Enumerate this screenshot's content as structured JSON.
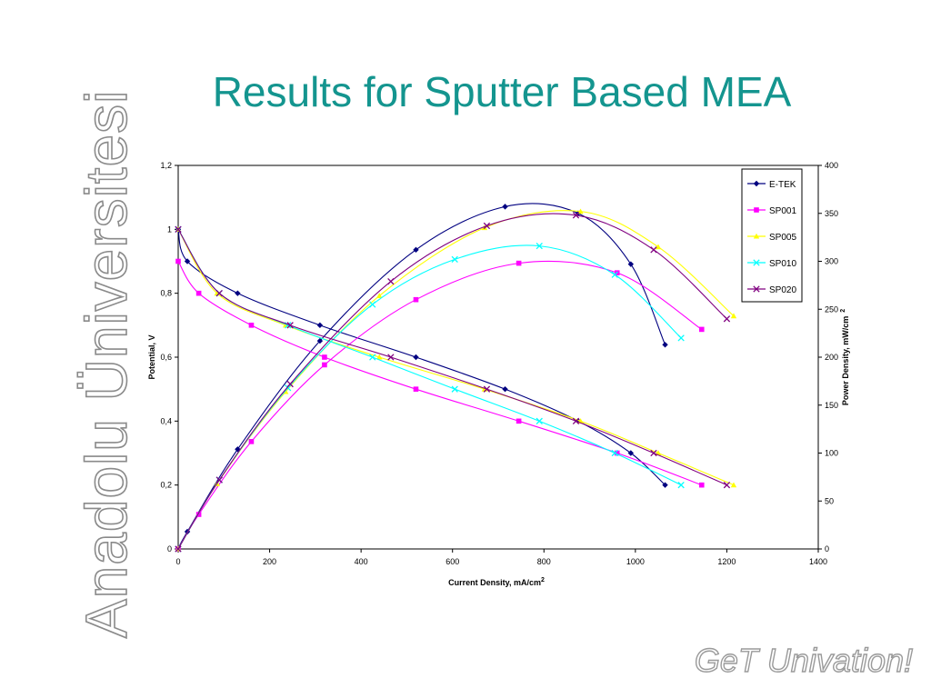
{
  "slide": {
    "title": "Results for Sputter Based MEA",
    "watermark": "Anadolu Üniversitesi",
    "tagline": "GeT Univation!"
  },
  "chart_data": {
    "type": "line",
    "xlabel": "Current Density, mA/cm",
    "xlabel_sup": "2",
    "ylabel_left": "Potential, V",
    "ylabel_right": "Power Density, mW/cm",
    "ylabel_right_sup": "2",
    "xlim": [
      0,
      1400
    ],
    "ylim_left": [
      0,
      1.2
    ],
    "ylim_right": [
      0,
      400
    ],
    "x_ticks": [
      "0",
      "200",
      "400",
      "600",
      "800",
      "1000",
      "1200",
      "1400"
    ],
    "y_left_ticks": [
      "0",
      "0,2",
      "0,4",
      "0,6",
      "0,8",
      "1",
      "1,2"
    ],
    "y_right_ticks": [
      "0",
      "50",
      "100",
      "150",
      "200",
      "250",
      "300",
      "350",
      "400"
    ],
    "grid": false,
    "legend_position": "top-right",
    "series": [
      {
        "name": "E-TEK",
        "color": "#000080",
        "marker": "diamond",
        "potential": [
          [
            0,
            1.0
          ],
          [
            20,
            0.9
          ],
          [
            130,
            0.8
          ],
          [
            310,
            0.7
          ],
          [
            520,
            0.6
          ],
          [
            715,
            0.5
          ],
          [
            875,
            0.4
          ],
          [
            990,
            0.3
          ],
          [
            1065,
            0.2
          ]
        ],
        "power": [
          [
            0,
            0
          ],
          [
            20,
            18
          ],
          [
            130,
            104
          ],
          [
            310,
            217
          ],
          [
            520,
            312
          ],
          [
            715,
            357
          ],
          [
            875,
            350
          ],
          [
            990,
            297
          ],
          [
            1065,
            213
          ]
        ]
      },
      {
        "name": "SP001",
        "color": "#ff00ff",
        "marker": "square",
        "potential": [
          [
            0,
            0.9
          ],
          [
            45,
            0.8
          ],
          [
            160,
            0.7
          ],
          [
            320,
            0.6
          ],
          [
            520,
            0.5
          ],
          [
            745,
            0.4
          ],
          [
            960,
            0.3
          ],
          [
            1145,
            0.2
          ]
        ],
        "power": [
          [
            0,
            0
          ],
          [
            45,
            36
          ],
          [
            160,
            112
          ],
          [
            320,
            192
          ],
          [
            520,
            260
          ],
          [
            745,
            298
          ],
          [
            960,
            288
          ],
          [
            1145,
            229
          ]
        ]
      },
      {
        "name": "SP005",
        "color": "#ffff00",
        "marker": "triangle",
        "potential": [
          [
            0,
            1.0
          ],
          [
            85,
            0.8
          ],
          [
            235,
            0.7
          ],
          [
            440,
            0.6
          ],
          [
            670,
            0.5
          ],
          [
            880,
            0.4
          ],
          [
            1050,
            0.3
          ],
          [
            1215,
            0.2
          ]
        ],
        "power": [
          [
            0,
            0
          ],
          [
            85,
            68
          ],
          [
            235,
            164
          ],
          [
            440,
            264
          ],
          [
            670,
            335
          ],
          [
            880,
            352
          ],
          [
            1050,
            315
          ],
          [
            1215,
            243
          ]
        ]
      },
      {
        "name": "SP010",
        "color": "#00ffff",
        "marker": "x",
        "potential": [
          [
            0,
            1.0
          ],
          [
            90,
            0.8
          ],
          [
            240,
            0.7
          ],
          [
            425,
            0.6
          ],
          [
            605,
            0.5
          ],
          [
            790,
            0.4
          ],
          [
            955,
            0.3
          ],
          [
            1100,
            0.2
          ]
        ],
        "power": [
          [
            0,
            0
          ],
          [
            90,
            72
          ],
          [
            240,
            168
          ],
          [
            425,
            255
          ],
          [
            605,
            302
          ],
          [
            790,
            316
          ],
          [
            955,
            286
          ],
          [
            1100,
            220
          ]
        ]
      },
      {
        "name": "SP020",
        "color": "#800080",
        "marker": "x",
        "potential": [
          [
            0,
            1.0
          ],
          [
            90,
            0.8
          ],
          [
            245,
            0.7
          ],
          [
            465,
            0.6
          ],
          [
            675,
            0.5
          ],
          [
            870,
            0.4
          ],
          [
            1040,
            0.3
          ],
          [
            1200,
            0.2
          ]
        ],
        "power": [
          [
            0,
            0
          ],
          [
            90,
            72
          ],
          [
            245,
            172
          ],
          [
            465,
            279
          ],
          [
            675,
            337
          ],
          [
            870,
            348
          ],
          [
            1040,
            312
          ],
          [
            1200,
            240
          ]
        ]
      }
    ]
  }
}
